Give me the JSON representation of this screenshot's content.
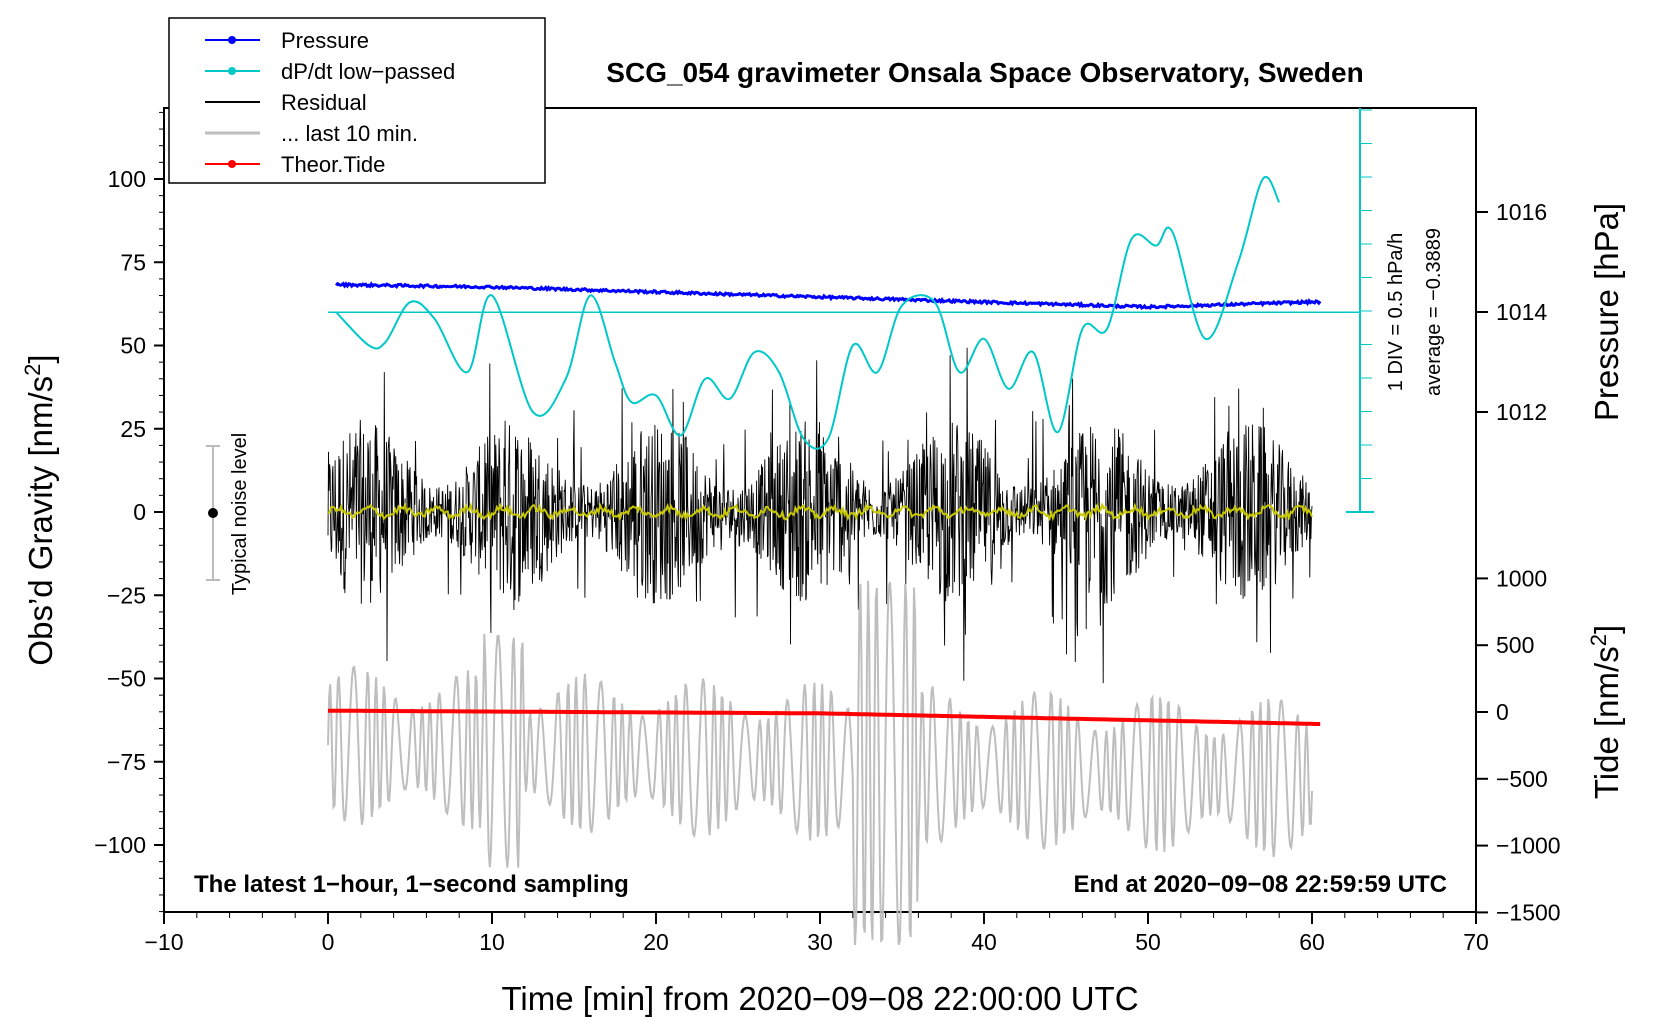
{
  "chart_data": {
    "type": "line",
    "title": "SCG_054 gravimeter Onsala Space Observatory, Sweden",
    "xlabel": "Time [min] from 2020−09−08 22:00:00 UTC",
    "ylabel_left": "Obs’d Gravity [nm/s²]",
    "ylabel_pressure": "Pressure [hPa]",
    "ylabel_tide": "Tide [nm/s²]",
    "xlim": [
      -10,
      70
    ],
    "ylim_left": [
      -120,
      120
    ],
    "x_ticks": [
      "−10",
      "0",
      "10",
      "20",
      "30",
      "40",
      "50",
      "60",
      "70"
    ],
    "y_ticks_left": [
      "100",
      "75",
      "50",
      "25",
      "0",
      "−25",
      "−50",
      "−75",
      "−100"
    ],
    "y_ticks_pressure": [
      "1016",
      "1014",
      "1012"
    ],
    "y_ticks_tide": [
      "1000",
      "500",
      "0",
      "−500",
      "−1000",
      "−1500"
    ],
    "legend": [
      {
        "label": "Pressure",
        "color": "#0000ff",
        "marker": true
      },
      {
        "label": "dP/dt low−passed",
        "color": "#00c8c8",
        "marker": true
      },
      {
        "label": "Residual",
        "color": "#000000",
        "marker": false
      },
      {
        "label": "... last 10 min.",
        "color": "#bebebe",
        "marker": false
      },
      {
        "label": "Theor.Tide",
        "color": "#ff0000",
        "marker": true
      }
    ],
    "series": [
      {
        "name": "Pressure",
        "unit": "hPa",
        "x": [
          0,
          10,
          20,
          30,
          40,
          45,
          50,
          55,
          60
        ],
        "values": [
          1014.55,
          1014.5,
          1014.4,
          1014.3,
          1014.2,
          1014.15,
          1014.1,
          1014.15,
          1014.2
        ]
      },
      {
        "name": "dP/dt low-passed",
        "unit": "gravity-axis units",
        "x": [
          0.5,
          2.5,
          3.5,
          5,
          6.5,
          8.5,
          10,
          12.5,
          14.5,
          16,
          17.5,
          18.5,
          20,
          21.5,
          23,
          24.5,
          26,
          27.5,
          29,
          30.5,
          32,
          33.5,
          35,
          37,
          38.5,
          40,
          41.5,
          43,
          44.5,
          46,
          47.5,
          49,
          50.5,
          51.5,
          53.5,
          55.5,
          57,
          58
        ],
        "values": [
          60,
          50,
          51,
          63,
          58,
          42,
          65,
          30,
          40,
          65,
          45,
          33,
          35,
          23,
          40,
          34,
          48,
          42,
          22,
          22,
          50,
          42,
          62,
          63,
          42,
          52,
          37,
          48,
          24,
          55,
          55,
          82,
          80,
          84,
          52,
          75,
          100,
          93
        ]
      },
      {
        "name": "Residual",
        "unit": "nm/s²",
        "x": [
          0,
          60
        ],
        "values": [
          0,
          0
        ]
      },
      {
        "name": "... last 10 min.",
        "unit": "nm/s²",
        "x": [
          0,
          60
        ],
        "values": [
          -70,
          -80
        ]
      },
      {
        "name": "Theor.Tide",
        "unit": "nm/s²",
        "x": [
          0,
          30,
          60.5
        ],
        "values": [
          10,
          -10,
          -90
        ]
      }
    ],
    "annotations": {
      "pressure_scale": "1 DIV = 0.5 hPa/h",
      "pressure_average": "average = −0.3889",
      "noise_level": "Typical noise level",
      "bottom_left": "The latest 1−hour, 1−second sampling",
      "bottom_right": "End at 2020−09−08 22:59:59 UTC"
    }
  }
}
